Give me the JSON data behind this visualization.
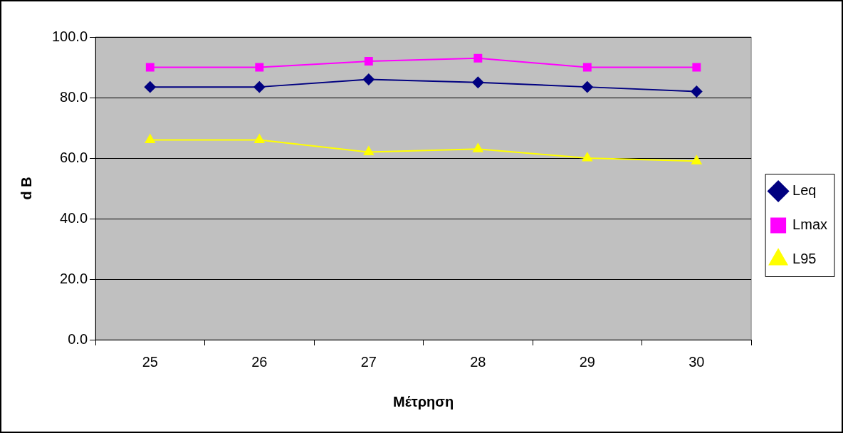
{
  "chart_data": {
    "type": "line",
    "xlabel": "Μέτρηση",
    "ylabel": "d B",
    "categories": [
      "25",
      "26",
      "27",
      "28",
      "29",
      "30"
    ],
    "series": [
      {
        "name": "Leq",
        "color": "#000080",
        "marker": "diamond",
        "values": [
          83.5,
          83.5,
          86,
          85,
          83.5,
          82
        ]
      },
      {
        "name": "Lmax",
        "color": "#ff00ff",
        "marker": "square",
        "values": [
          90,
          90,
          92,
          93,
          90,
          90
        ]
      },
      {
        "name": "L95",
        "color": "#ffff00",
        "marker": "triangle",
        "values": [
          66,
          66,
          62,
          63,
          60,
          59
        ]
      }
    ],
    "ylim": [
      0,
      100
    ],
    "yticks": [
      {
        "value": 0,
        "label": "0.0"
      },
      {
        "value": 20,
        "label": "20.0"
      },
      {
        "value": 40,
        "label": "40.0"
      },
      {
        "value": 60,
        "label": "60.0"
      },
      {
        "value": 80,
        "label": "80.0"
      },
      {
        "value": 100,
        "label": "100.0"
      }
    ],
    "grid": "y",
    "legend": "right",
    "line_style": "solid"
  }
}
